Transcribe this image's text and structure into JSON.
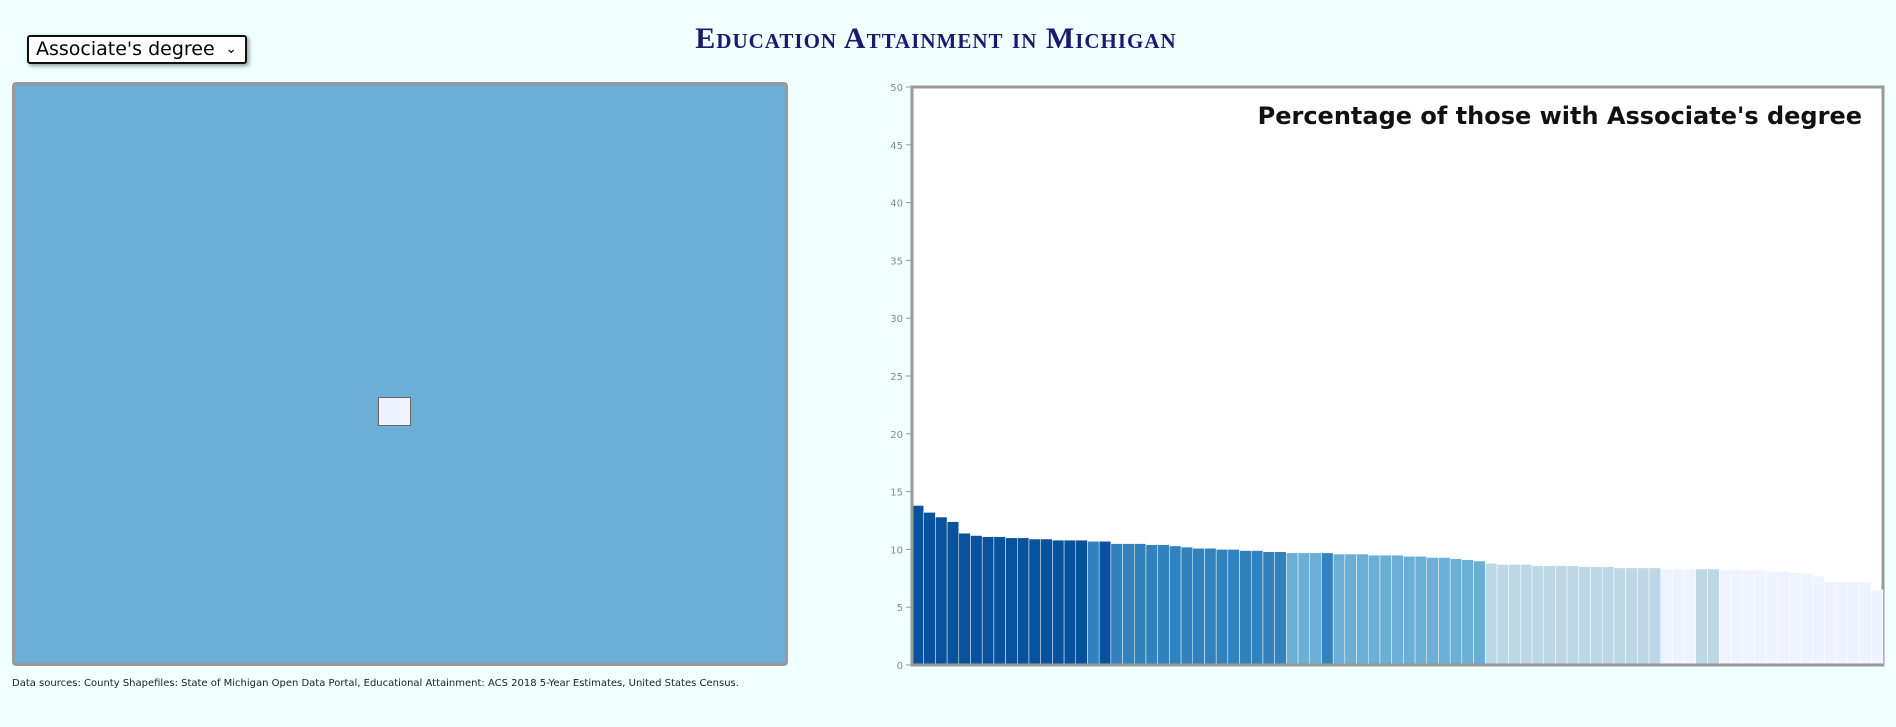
{
  "header": {
    "title": "Education Attainment in Michigan",
    "dropdown": "Associate's degree"
  },
  "footer": {
    "source": "Data sources: County Shapefiles: State of Michigan Open Data Portal, Educational Attainment: ACS 2018 5-Year Estimates, United States Census."
  },
  "chart_data": {
    "type": "bar",
    "title": "Percentage of those with Associate's degree",
    "values": [
      13.8,
      13.2,
      12.8,
      12.4,
      11.4,
      11.2,
      11.1,
      11.1,
      11.0,
      11.0,
      10.9,
      10.9,
      10.8,
      10.8,
      10.8,
      10.7,
      10.7,
      10.5,
      10.5,
      10.5,
      10.4,
      10.4,
      10.3,
      10.2,
      10.1,
      10.1,
      10.0,
      10.0,
      9.9,
      9.9,
      9.8,
      9.8,
      9.7,
      9.7,
      9.7,
      9.7,
      9.6,
      9.6,
      9.6,
      9.5,
      9.5,
      9.5,
      9.4,
      9.4,
      9.3,
      9.3,
      9.2,
      9.1,
      9.0,
      8.8,
      8.7,
      8.7,
      8.7,
      8.6,
      8.6,
      8.6,
      8.6,
      8.5,
      8.5,
      8.5,
      8.4,
      8.4,
      8.4,
      8.4,
      8.3,
      8.3,
      8.3,
      8.3,
      8.3,
      8.2,
      8.2,
      8.2,
      8.2,
      8.1,
      8.1,
      8.0,
      7.9,
      7.7,
      7.2,
      7.2,
      7.2,
      7.2,
      6.5
    ],
    "color_scale": "quantile",
    "colors": [
      "#08519c",
      "#3182bd",
      "#6baed6",
      "#bdd7e7",
      "#eff3ff"
    ],
    "ylim": [
      0,
      50
    ],
    "yticks": [
      0,
      5,
      10,
      15,
      20,
      25,
      30,
      35,
      40,
      45,
      50
    ]
  }
}
